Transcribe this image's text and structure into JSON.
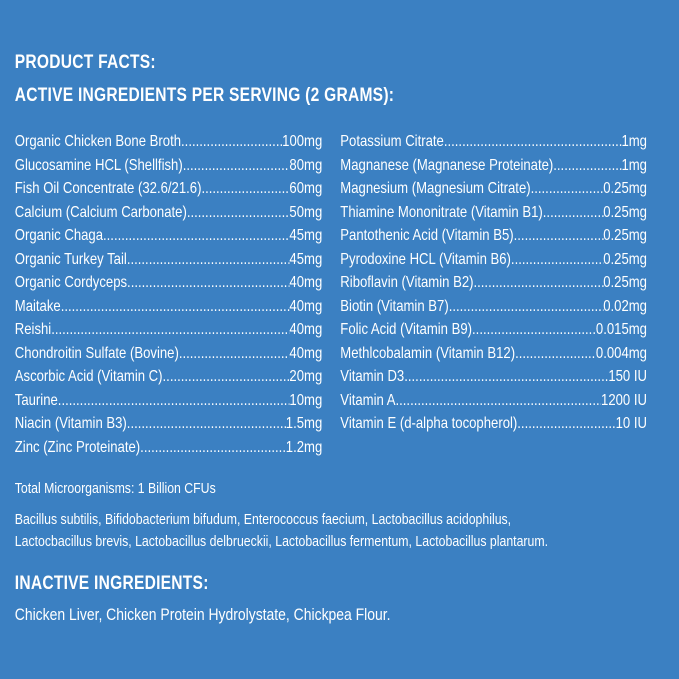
{
  "header": {
    "title": "PRODUCT FACTS:",
    "subtitle": "ACTIVE INGREDIENTS PER SERVING (2 GRAMS):"
  },
  "left_ingredients": [
    {
      "name": "Organic Chicken Bone Broth",
      "amount": "100mg"
    },
    {
      "name": "Glucosamine HCL (Shellfish)",
      "amount": "80mg"
    },
    {
      "name": "Fish Oil Concentrate (32.6/21.6)",
      "amount": "60mg"
    },
    {
      "name": "Calcium (Calcium Carbonate)",
      "amount": "50mg"
    },
    {
      "name": "Organic Chaga",
      "amount": "45mg"
    },
    {
      "name": "Organic Turkey Tail",
      "amount": "45mg"
    },
    {
      "name": "Organic Cordyceps",
      "amount": "40mg"
    },
    {
      "name": "Maitake",
      "amount": "40mg"
    },
    {
      "name": "Reishi",
      "amount": "40mg"
    },
    {
      "name": "Chondroitin Sulfate (Bovine)",
      "amount": "40mg"
    },
    {
      "name": "Ascorbic Acid (Vitamin C)",
      "amount": "20mg"
    },
    {
      "name": "Taurine",
      "amount": "10mg"
    },
    {
      "name": "Niacin (Vitamin B3)",
      "amount": "1.5mg"
    },
    {
      "name": "Zinc (Zinc Proteinate)",
      "amount": "1.2mg"
    }
  ],
  "right_ingredients": [
    {
      "name": "Potassium Citrate",
      "amount": "1mg"
    },
    {
      "name": "Magnanese (Magnanese Proteinate)",
      "amount": "1mg"
    },
    {
      "name": "Magnesium (Magnesium Citrate)",
      "amount": "0.25mg"
    },
    {
      "name": "Thiamine Mononitrate (Vitamin B1)",
      "amount": "0.25mg"
    },
    {
      "name": "Pantothenic Acid (Vitamin B5)",
      "amount": "0.25mg"
    },
    {
      "name": "Pyrodoxine HCL (Vitamin B6)",
      "amount": "0.25mg"
    },
    {
      "name": "Riboflavin (Vitamin B2)",
      "amount": "0.25mg"
    },
    {
      "name": "Biotin (Vitamin B7)",
      "amount": "0.02mg"
    },
    {
      "name": "Folic Acid (Vitamin B9)",
      "amount": "0.015mg"
    },
    {
      "name": "Methlcobalamin (Vitamin B12)",
      "amount": "0.004mg"
    },
    {
      "name": "Vitamin D3",
      "amount": "150 IU"
    },
    {
      "name": "Vitamin A",
      "amount": "1200 IU"
    },
    {
      "name": "Vitamin E (d-alpha tocopherol)",
      "amount": "10 IU"
    }
  ],
  "microorganisms": {
    "total": "Total Microorganisms: 1 Billion CFUs",
    "line1": "Bacillus subtilis, Bifidobacterium bifudum, Enterococcus faecium, Lactobacillus acidophilus,",
    "line2": "Lactocbacillus brevis, Lactobacillus delbrueckii, Lactobacillus fermentum, Lactobacillus plantarum."
  },
  "inactive": {
    "title": "INACTIVE INGREDIENTS:",
    "text": "Chicken Liver, Chicken Protein Hydrolystate, Chickpea Flour."
  },
  "colors": {
    "background": "#3b80c2",
    "text": "#ffffff"
  }
}
